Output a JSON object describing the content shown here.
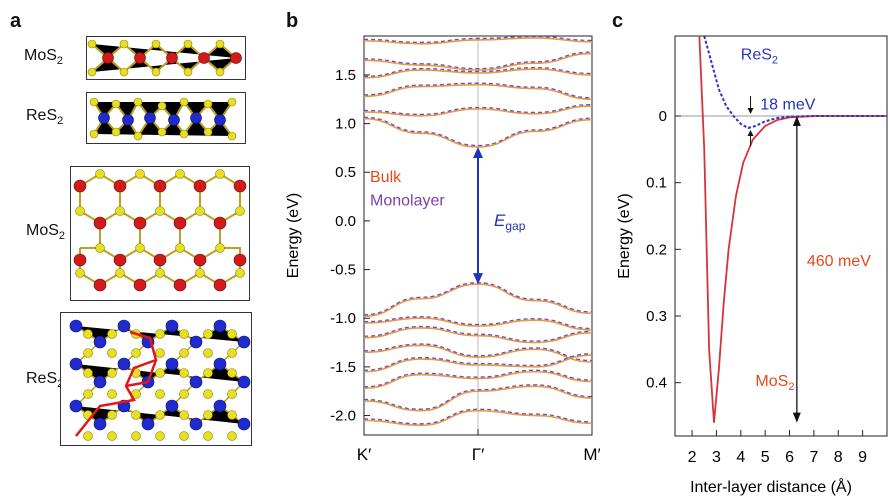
{
  "panels": {
    "a": {
      "letter": "a",
      "labels": [
        "MoS",
        "ReS",
        "MoS",
        "ReS"
      ],
      "subscript": "2"
    },
    "b": {
      "letter": "b"
    },
    "c": {
      "letter": "c"
    }
  },
  "chart_data": [
    {
      "type": "line",
      "title": "",
      "ylabel": "Energy (eV)",
      "xlabel": "",
      "x_ticks": [
        "K′",
        "Γ′",
        "M′"
      ],
      "ylim": [
        -2.2,
        1.9
      ],
      "y_ticks": [
        -2.0,
        -1.5,
        -1.0,
        -0.5,
        0.0,
        0.5,
        1.0,
        1.5
      ],
      "legend": {
        "bulk": "Bulk",
        "monolayer": "Monolayer"
      },
      "annotation": {
        "text": "E",
        "sub": "gap",
        "from": -0.65,
        "to": 0.76
      },
      "colors": {
        "bulk": "#e59a45",
        "monolayer": "#6a4cc0",
        "arrow": "#2233bb",
        "legend_bulk": "#e8491b",
        "legend_mono": "#7a3fb0"
      },
      "series": [
        {
          "values": [
            1.85,
            1.82,
            1.86,
            1.88,
            1.84
          ]
        },
        {
          "values": [
            1.65,
            1.6,
            1.55,
            1.62,
            1.72
          ]
        },
        {
          "values": [
            1.47,
            1.55,
            1.52,
            1.56,
            1.5
          ]
        },
        {
          "values": [
            1.28,
            1.38,
            1.4,
            1.36,
            1.25
          ]
        },
        {
          "values": [
            1.12,
            1.08,
            1.15,
            1.1,
            1.18
          ]
        },
        {
          "values": [
            1.05,
            0.9,
            0.76,
            0.92,
            1.04
          ]
        },
        {
          "values": [
            -0.98,
            -0.8,
            -0.65,
            -0.82,
            -0.95
          ]
        },
        {
          "values": [
            -1.05,
            -1.0,
            -1.08,
            -1.02,
            -1.12
          ]
        },
        {
          "values": [
            -1.2,
            -1.1,
            -1.18,
            -1.25,
            -1.15
          ]
        },
        {
          "values": [
            -1.35,
            -1.28,
            -1.4,
            -1.32,
            -1.45
          ]
        },
        {
          "values": [
            -1.55,
            -1.42,
            -1.48,
            -1.5,
            -1.38
          ]
        },
        {
          "values": [
            -1.72,
            -1.58,
            -1.62,
            -1.55,
            -1.65
          ]
        },
        {
          "values": [
            -1.85,
            -1.95,
            -1.75,
            -1.7,
            -1.82
          ]
        },
        {
          "values": [
            -2.05,
            -2.1,
            -1.95,
            -2.0,
            -2.08
          ]
        }
      ]
    },
    {
      "type": "line",
      "title": "",
      "ylabel": "Energy (eV)",
      "xlabel": "Inter-layer distance (Å)",
      "xlim": [
        1.3,
        10.0
      ],
      "ylim": [
        -0.48,
        0.12
      ],
      "x_ticks": [
        2,
        3,
        4,
        5,
        6,
        7,
        8,
        9
      ],
      "y_ticks": [
        0,
        0.1,
        0.2,
        0.3,
        0.4
      ],
      "annotations": [
        {
          "text": "18 meV",
          "color": "#2233bb"
        },
        {
          "text": "460 meV",
          "color": "#e8491b"
        }
      ],
      "labels": {
        "res2": "ReS",
        "mos2": "MoS",
        "sub": "2"
      },
      "series": [
        {
          "name": "MoS2",
          "color": "#d8333a",
          "x": [
            2.3,
            2.5,
            2.7,
            2.9,
            3.1,
            3.3,
            3.5,
            3.8,
            4.1,
            4.5,
            5.0,
            5.5,
            6.0,
            6.5,
            7.0,
            8.0,
            10.0
          ],
          "y": [
            0.12,
            -0.05,
            -0.35,
            -0.46,
            -0.38,
            -0.28,
            -0.2,
            -0.12,
            -0.07,
            -0.035,
            -0.015,
            -0.006,
            -0.002,
            -0.001,
            0.0,
            0.0,
            0.0
          ]
        },
        {
          "name": "ReS2",
          "color": "#2a35c8",
          "x": [
            2.5,
            2.8,
            3.1,
            3.4,
            3.7,
            4.0,
            4.3,
            4.6,
            5.0,
            5.5,
            6.0,
            7.0,
            10.0
          ],
          "y": [
            0.12,
            0.08,
            0.04,
            0.015,
            0.0,
            -0.012,
            -0.018,
            -0.015,
            -0.008,
            -0.003,
            -0.001,
            0.0,
            0.0
          ]
        }
      ]
    }
  ]
}
